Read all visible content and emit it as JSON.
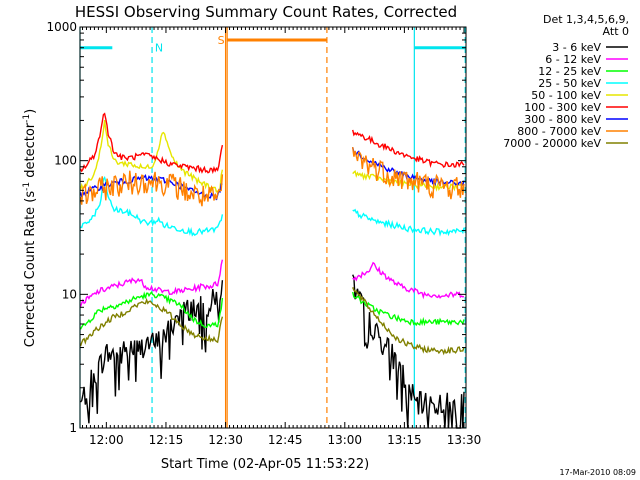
{
  "chart_data": {
    "type": "line",
    "title": "HESSI Observing Summary Count Rates, Corrected",
    "xlabel": "Start Time (02-Apr-05 11:53:22)",
    "ylabel_main": "Corrected Count Rate (s",
    "ylabel_sup1": "-1",
    "ylabel_mid": " detector",
    "ylabel_sup2": "-1",
    "ylabel_end": ")",
    "ylog": true,
    "ylim": [
      1,
      1000
    ],
    "xlim_min": [
      713.37,
      810.5
    ],
    "x_ticks": [
      {
        "v": 720,
        "label": "12:00"
      },
      {
        "v": 735,
        "label": "12:15"
      },
      {
        "v": 750,
        "label": "12:30"
      },
      {
        "v": 765,
        "label": "12:45"
      },
      {
        "v": 780,
        "label": "13:00"
      },
      {
        "v": 795,
        "label": "13:15"
      },
      {
        "v": 810,
        "label": "13:30"
      }
    ],
    "y_ticks": [
      {
        "v": 1,
        "label": "1"
      },
      {
        "v": 10,
        "label": "10"
      },
      {
        "v": 100,
        "label": "100"
      },
      {
        "v": 1000,
        "label": "1000"
      }
    ],
    "legend_header": [
      "Det 1,3,4,5,6,9,",
      "Att 0"
    ],
    "legend_position": "right",
    "series": [
      {
        "name": "3 - 6 keV",
        "color": "#000000",
        "segments": [
          {
            "x": [
              713.5,
              716,
              718,
              720,
              722,
              724,
              726,
              728,
              730,
              732,
              734,
              736,
              738,
              740,
              742,
              744,
              746,
              748,
              749.2
            ],
            "y": [
              1.5,
              2.2,
              2.8,
              3.6,
              3.5,
              3.6,
              4.0,
              3.8,
              4.4,
              4.2,
              4.6,
              5.5,
              7.0,
              7.5,
              8.0,
              7.8,
              8.5,
              9.5,
              12
            ]
          },
          {
            "x": [
              782,
              784,
              786,
              788,
              790,
              792,
              794,
              796,
              798,
              800,
              802,
              804,
              806,
              808,
              810
            ],
            "y": [
              12,
              8.5,
              6.5,
              5.0,
              4.2,
              3.5,
              2.8,
              2.0,
              1.5,
              1.5,
              1.5,
              1.5,
              1.5,
              1.5,
              1.5
            ]
          }
        ]
      },
      {
        "name": "6 - 12 keV",
        "color": "#ff00ff",
        "segments": [
          {
            "x": [
              713.5,
              716,
              718,
              720,
              722,
              724,
              726,
              728,
              730,
              732,
              734,
              736,
              738,
              740,
              742,
              744,
              746,
              748,
              749.2
            ],
            "y": [
              8.5,
              9.5,
              10.5,
              11,
              11.5,
              12,
              12.5,
              13,
              11.5,
              11,
              10.5,
              10.5,
              10.5,
              10.8,
              11,
              11.5,
              11.5,
              12,
              18
            ]
          },
          {
            "x": [
              782,
              784,
              786,
              787,
              788,
              790,
              792,
              794,
              796,
              798,
              800,
              802,
              804,
              806,
              808,
              810
            ],
            "y": [
              13,
              14,
              15,
              17,
              15.5,
              14,
              12.5,
              11.5,
              11,
              10.5,
              10,
              10,
              9.8,
              9.8,
              10,
              10
            ]
          }
        ]
      },
      {
        "name": "12 - 25 keV",
        "color": "#00ff00",
        "segments": [
          {
            "x": [
              713.5,
              716,
              718,
              720,
              722,
              724,
              726,
              728,
              730,
              732,
              734,
              736,
              738,
              740,
              742,
              744,
              746,
              748,
              749.2
            ],
            "y": [
              5.5,
              6.5,
              7.5,
              8.0,
              8.2,
              8.5,
              9.0,
              9.5,
              9.8,
              10,
              9.5,
              9.0,
              8.5,
              7.5,
              6.5,
              6.0,
              5.8,
              6.0,
              9
            ]
          },
          {
            "x": [
              782,
              784,
              786,
              788,
              790,
              792,
              794,
              796,
              798,
              800,
              802,
              804,
              806,
              808,
              810
            ],
            "y": [
              10,
              9.0,
              8.2,
              7.6,
              7.2,
              6.8,
              6.5,
              6.3,
              6.2,
              6.2,
              6.2,
              6.2,
              6.2,
              6.2,
              6.3
            ]
          }
        ]
      },
      {
        "name": "25 - 50 keV",
        "color": "#00ffff",
        "segments": [
          {
            "x": [
              713.5,
              715,
              717,
              718.5,
              719.5,
              720.5,
              722,
              724,
              726,
              727.5,
              729,
              731,
              733,
              734.5,
              736,
              738,
              740,
              742,
              744,
              746,
              748,
              749.2
            ],
            "y": [
              31,
              34,
              39,
              48,
              78,
              52,
              43,
              42,
              40,
              38,
              35,
              34,
              36,
              33,
              32,
              31,
              30,
              29,
              29.5,
              30,
              31,
              38
            ]
          },
          {
            "x": [
              782,
              784,
              786,
              788,
              790,
              792,
              794,
              796,
              798,
              800,
              802,
              804,
              806,
              808,
              810
            ],
            "y": [
              42,
              39,
              37,
              35,
              34,
              33,
              32,
              31,
              30.5,
              30,
              29.5,
              29.5,
              29.5,
              29.5,
              30
            ]
          }
        ]
      },
      {
        "name": "50 - 100 keV",
        "color": "#e6e600",
        "segments": [
          {
            "x": [
              713.5,
              715,
              717,
              718.5,
              719.5,
              720.5,
              722,
              724,
              726,
              728,
              730,
              732,
              733.5,
              734.5,
              735.5,
              737,
              739,
              741,
              743,
              745,
              747,
              748.5,
              749.2
            ],
            "y": [
              62,
              68,
              80,
              120,
              200,
              130,
              100,
              95,
              95,
              90,
              88,
              95,
              140,
              170,
              130,
              100,
              85,
              78,
              70,
              66,
              62,
              58,
              90
            ]
          },
          {
            "x": [
              782,
              784,
              786,
              788,
              790,
              792,
              794,
              796,
              798,
              800,
              802,
              804,
              806,
              808,
              810
            ],
            "y": [
              80,
              78,
              76,
              74,
              72,
              70,
              68,
              67,
              66,
              65,
              64,
              64,
              64,
              64,
              65
            ]
          }
        ]
      },
      {
        "name": "100 - 300 keV",
        "color": "#ff0000",
        "segments": [
          {
            "x": [
              713.5,
              715,
              717,
              718.5,
              719.5,
              720.5,
              722,
              724,
              726,
              728,
              730,
              732,
              734,
              736,
              738,
              740,
              742,
              744,
              746,
              748,
              749.2
            ],
            "y": [
              85,
              92,
              110,
              160,
              240,
              160,
              115,
              105,
              105,
              108,
              110,
              105,
              100,
              95,
              92,
              90,
              88,
              86,
              85,
              84,
              130
            ]
          },
          {
            "x": [
              782,
              784,
              786,
              788,
              790,
              792,
              794,
              796,
              798,
              800,
              802,
              804,
              806,
              808,
              810
            ],
            "y": [
              165,
              155,
              145,
              135,
              128,
              120,
              113,
              108,
              103,
              99,
              96,
              94,
              93,
              93,
              94
            ]
          }
        ]
      },
      {
        "name": "300 - 800 keV",
        "color": "#0000ff",
        "segments": [
          {
            "x": [
              713.5,
              716,
              718,
              720,
              722,
              724,
              726,
              728,
              730,
              732,
              734,
              736,
              738,
              740,
              742,
              744,
              746,
              748,
              749.2
            ],
            "y": [
              56,
              60,
              63,
              66,
              68,
              70,
              71,
              73,
              74,
              73,
              72,
              70,
              66,
              62,
              59,
              56,
              55,
              53,
              70
            ]
          },
          {
            "x": [
              782,
              784,
              786,
              788,
              790,
              792,
              794,
              796,
              798,
              800,
              802,
              804,
              806,
              808,
              810
            ],
            "y": [
              120,
              110,
              102,
              95,
              89,
              84,
              80,
              77,
              74,
              72,
              70,
              69,
              68,
              68,
              68
            ]
          }
        ]
      },
      {
        "name": "800 - 7000 keV",
        "color": "#ff8000",
        "segments": [
          {
            "x": [
              713.5,
              716,
              718,
              720,
              722,
              724,
              726,
              728,
              730,
              732,
              734,
              736,
              738,
              740,
              742,
              744,
              746,
              748,
              749.2
            ],
            "y": [
              53,
              57,
              60,
              63,
              65,
              67,
              68,
              70,
              71,
              70,
              69,
              67,
              63,
              59,
              56,
              54,
              52,
              51,
              65
            ]
          },
          {
            "x": [
              782,
              784,
              786,
              788,
              790,
              792,
              794,
              796,
              798,
              800,
              802,
              804,
              806,
              808,
              810
            ],
            "y": [
              112,
              102,
              94,
              88,
              82,
              78,
              74,
              71,
              69,
              67,
              65,
              64,
              63,
              63,
              63
            ]
          }
        ]
      },
      {
        "name": "7000 - 20000 keV",
        "color": "#808000",
        "segments": [
          {
            "x": [
              713.5,
              716,
              718,
              720,
              722,
              724,
              726,
              728,
              730,
              732,
              734,
              736,
              738,
              740,
              742,
              744,
              746,
              748,
              749.2
            ],
            "y": [
              4.2,
              5.0,
              5.6,
              6.2,
              6.8,
              7.2,
              7.8,
              8.4,
              8.8,
              8.4,
              7.8,
              7.0,
              6.2,
              5.5,
              5.0,
              4.8,
              4.6,
              4.6,
              7
            ]
          },
          {
            "x": [
              782,
              784,
              786,
              788,
              790,
              792,
              794,
              796,
              798,
              800,
              802,
              804,
              806,
              808,
              810
            ],
            "y": [
              11,
              9.5,
              8.0,
              6.8,
              5.8,
              5.0,
              4.5,
              4.2,
              4.0,
              3.9,
              3.8,
              3.8,
              3.8,
              3.8,
              3.9
            ]
          }
        ]
      }
    ],
    "annotations": [
      {
        "label": "N",
        "color": "#00e5ee",
        "bars": [
          [
            713.37,
            721.5
          ],
          [
            797.5,
            810.5
          ]
        ],
        "bar_y": 700,
        "solid_lines": [
          713.37,
          797.5
        ],
        "dashed_lines": [
          731.5,
          810.3
        ],
        "label_x": 732.2,
        "label_y": 700
      },
      {
        "label": "S",
        "color": "#ff8000",
        "bars": [
          [
            750.3,
            775.5
          ]
        ],
        "bar_y": 800,
        "solid_lines": [
          750.0,
          750.4
        ],
        "dashed_lines": [
          775.5
        ],
        "label_x": 748.0,
        "label_y": 800
      }
    ]
  },
  "footer_date": "17-Mar-2010 08:09"
}
